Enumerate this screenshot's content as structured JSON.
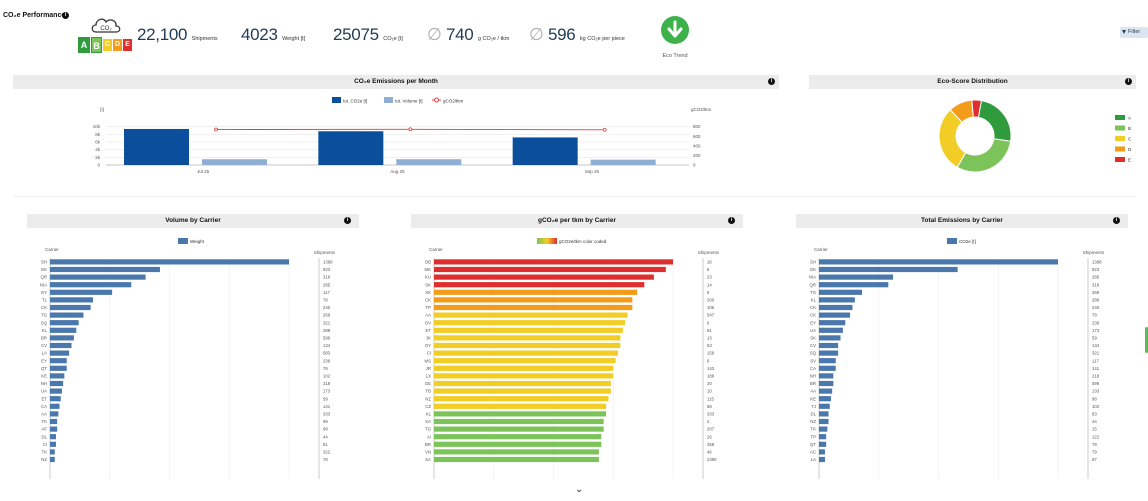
{
  "header": {
    "title": "CO₂e Performance",
    "badge": {
      "cloud_label": "CO₂",
      "grades": [
        "A",
        "B",
        "C",
        "D",
        "E"
      ]
    },
    "kpis": [
      {
        "value": "22,100",
        "unit": "Shipments"
      },
      {
        "value": "4023",
        "unit": "Weight [t]"
      },
      {
        "value": "25075",
        "unit": "CO₂e [t]"
      },
      {
        "value": "740",
        "unit": "g CO₂e / tkm",
        "prefix": "∅"
      },
      {
        "value": "596",
        "unit": "kg CO₂e per piece",
        "prefix": "∅"
      }
    ],
    "eco_trend_label": "Eco Trend",
    "filter_label": "Filter"
  },
  "colors": {
    "dark_blue": "#0b4f9c",
    "light_blue": "#8eaed3",
    "steel": "#4a78ad",
    "trend_red": "#d94040",
    "grade_A": "#2f9b3c",
    "grade_B": "#7cc45a",
    "grade_C": "#f2cd26",
    "grade_D": "#f39c1a",
    "grade_E": "#de2e2e"
  },
  "monthly": {
    "title": "CO₂e Emissions per Month",
    "legend": [
      "tot. CO2e [t]",
      "tot. Volume [t]",
      "gCO2/tkm"
    ],
    "left_unit": "[t]",
    "right_unit": "gCO2/tkm",
    "chart_data": {
      "type": "bar",
      "categories": [
        "Jul 25",
        "Aug 25",
        "Sep 25"
      ],
      "series": [
        {
          "name": "tot. CO2e [t]",
          "values": [
            9400,
            8800,
            7200
          ]
        },
        {
          "name": "tot. Volume [t]",
          "values": [
            1500,
            1500,
            1400
          ]
        },
        {
          "name": "gCO2/tkm",
          "values": [
            740,
            745,
            735
          ],
          "axis": "right"
        }
      ],
      "ylim": [
        0,
        12000
      ],
      "y_ticks": [
        "0",
        "2k",
        "4k",
        "6k",
        "8k",
        "10k"
      ],
      "y2lim": [
        0,
        960
      ],
      "y2_ticks": [
        "0",
        "200",
        "400",
        "600",
        "800"
      ]
    }
  },
  "eco_dist": {
    "title": "Eco-Score Distribution",
    "chart_data": {
      "type": "pie",
      "labels": [
        "A",
        "B",
        "C",
        "D",
        "E"
      ],
      "values": [
        23,
        29,
        28,
        10,
        4
      ]
    }
  },
  "volume": {
    "title": "Volume by Carrier",
    "legend": "Weight",
    "carrier_label": "Carrier",
    "shipments_label": "Shipments",
    "chart_data": {
      "type": "bar",
      "orientation": "horizontal",
      "categories": [
        "SH",
        "EK",
        "QR",
        "N/A",
        "EY",
        "TL",
        "CK",
        "TG",
        "SQ",
        "KL",
        "BR",
        "CV",
        "LA",
        "EY",
        "QT",
        "KE",
        "NH",
        "UA",
        "ET",
        "CA",
        "AA",
        "TK",
        "AF",
        "DL",
        "CI",
        "TK",
        "NZ"
      ],
      "values": [
        100,
        46,
        40,
        34,
        26,
        18,
        17,
        14,
        12,
        11,
        10,
        9,
        8,
        7,
        7,
        6,
        5.5,
        5,
        4.5,
        4,
        3.5,
        3,
        3,
        2.5,
        2.5,
        2,
        2
      ],
      "shipments": [
        "1398",
        "923",
        "318",
        "285",
        "117",
        "78",
        "240",
        "269",
        "321",
        "288",
        "599",
        "134",
        "583",
        "238",
        "76",
        "102",
        "218",
        "173",
        "59",
        "141",
        "333",
        "99",
        "98",
        "44",
        "81",
        "322",
        "78"
      ]
    }
  },
  "gco2": {
    "title": "gCO₂e per tkm by Carrier",
    "legend": "gCO2e/tkm color coded",
    "carrier_label": "Carrier",
    "shipments_label": "Shipments",
    "chart_data": {
      "type": "bar",
      "orientation": "horizontal",
      "categories": [
        "DB",
        "MK",
        "KU",
        "SK",
        "SK",
        "CK",
        "TP",
        "AA",
        "OV",
        "ET",
        "JK",
        "OY",
        "CI",
        "MS",
        "JR",
        "LX",
        "GE",
        "TB",
        "NZ",
        "CZ",
        "KL",
        "SA",
        "TG",
        "AI",
        "BR",
        "VN",
        "SA"
      ],
      "values": [
        100,
        97,
        92,
        88,
        85,
        83,
        83,
        81,
        80,
        79,
        78,
        78,
        77,
        76,
        75,
        75,
        74,
        74,
        73,
        72,
        72,
        71,
        71,
        70,
        70,
        69,
        69
      ],
      "grades": [
        "E",
        "E",
        "E",
        "E",
        "D",
        "D",
        "D",
        "C",
        "C",
        "C",
        "C",
        "C",
        "C",
        "C",
        "C",
        "C",
        "C",
        "C",
        "C",
        "C",
        "B",
        "B",
        "B",
        "B",
        "B",
        "B",
        "B"
      ],
      "shipments": [
        "16",
        "5",
        "23",
        "14",
        "6",
        "200",
        "106",
        "547",
        "6",
        "81",
        "13",
        "53",
        "159",
        "6",
        "143",
        "189",
        "20",
        "10",
        "115",
        "68",
        "333",
        "2",
        "207",
        "26",
        "258",
        "46",
        "2390"
      ]
    }
  },
  "total": {
    "title": "Total Emissions by Carrier",
    "legend": "CO2e [t]",
    "carrier_label": "Carrier",
    "shipments_label": "Shipments",
    "chart_data": {
      "type": "bar",
      "orientation": "horizontal",
      "categories": [
        "SH",
        "EK",
        "N/A",
        "QR",
        "TG",
        "KL",
        "CK",
        "CK",
        "EY",
        "UA",
        "SK",
        "CV",
        "SQ",
        "SV",
        "CA",
        "NH",
        "BR",
        "AA",
        "KE",
        "TJ",
        "DL",
        "NZ",
        "TK",
        "TP",
        "QT",
        "AC",
        "LA"
      ],
      "values": [
        100,
        58,
        31,
        29,
        18,
        15,
        14,
        13,
        11,
        10,
        9,
        8,
        8,
        7,
        7,
        6,
        6,
        5.5,
        5,
        4.5,
        4,
        4,
        3.5,
        3,
        3,
        2.5,
        2.5
      ],
      "shipments": [
        "1398",
        "923",
        "285",
        "318",
        "269",
        "288",
        "240",
        "78",
        "238",
        "173",
        "59",
        "134",
        "321",
        "117",
        "141",
        "218",
        "599",
        "133",
        "98",
        "102",
        "83",
        "44",
        "15",
        "122",
        "79",
        "79",
        "87"
      ]
    }
  }
}
